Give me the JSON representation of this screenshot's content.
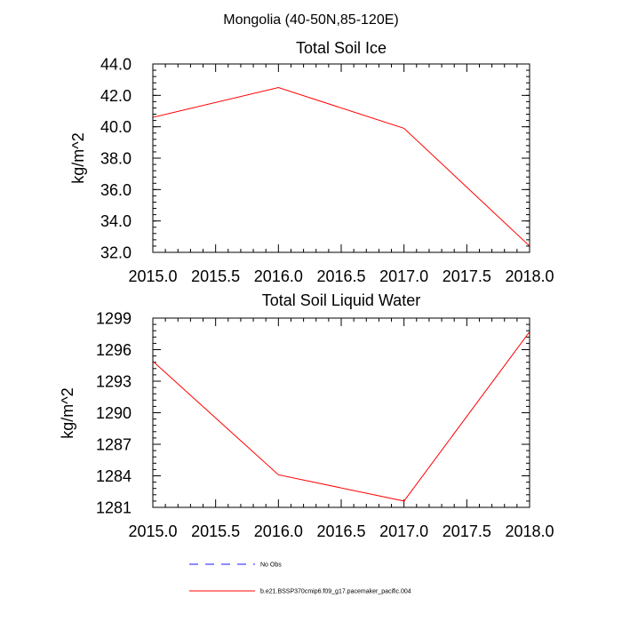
{
  "figure": {
    "suptitle": "Mongolia (40-50N,85-120E)"
  },
  "chart_data": [
    {
      "type": "line",
      "title": "Total Soil Ice",
      "xlabel": "",
      "ylabel": "kg/m^2",
      "x": [
        2015.0,
        2016.0,
        2017.0,
        2018.0
      ],
      "xlim": [
        2015.0,
        2018.0
      ],
      "xticks": [
        "2015.0",
        "2015.5",
        "2016.0",
        "2016.5",
        "2017.0",
        "2017.5",
        "2018.0"
      ],
      "ylim": [
        32.0,
        44.0
      ],
      "yticks": [
        "32.0",
        "34.0",
        "36.0",
        "38.0",
        "40.0",
        "42.0",
        "44.0"
      ],
      "grid": false,
      "series": [
        {
          "name": "b.e21.BSSP370cmip6.f09_g17.pacemaker_pacific.004",
          "color": "#ff0000",
          "values": [
            40.6,
            42.5,
            39.9,
            32.4
          ]
        }
      ]
    },
    {
      "type": "line",
      "title": "Total Soil Liquid Water",
      "xlabel": "",
      "ylabel": "kg/m^2",
      "x": [
        2015.0,
        2016.0,
        2017.0,
        2018.0
      ],
      "xlim": [
        2015.0,
        2018.0
      ],
      "xticks": [
        "2015.0",
        "2015.5",
        "2016.0",
        "2016.5",
        "2017.0",
        "2017.5",
        "2018.0"
      ],
      "ylim": [
        1281,
        1299
      ],
      "yticks": [
        "1281",
        "1284",
        "1287",
        "1290",
        "1293",
        "1296",
        "1299"
      ],
      "grid": false,
      "series": [
        {
          "name": "b.e21.BSSP370cmip6.f09_g17.pacemaker_pacific.004",
          "color": "#ff0000",
          "values": [
            1294.9,
            1284.1,
            1281.6,
            1297.7
          ]
        }
      ]
    }
  ],
  "legend": {
    "placement": "bottom",
    "items": [
      {
        "label": "No Obs",
        "color": "#1a1aff",
        "style": "dashed"
      },
      {
        "label": "b.e21.BSSP370cmip6.f09_g17.pacemaker_pacific.004",
        "color": "#ff0000",
        "style": "solid"
      }
    ]
  }
}
